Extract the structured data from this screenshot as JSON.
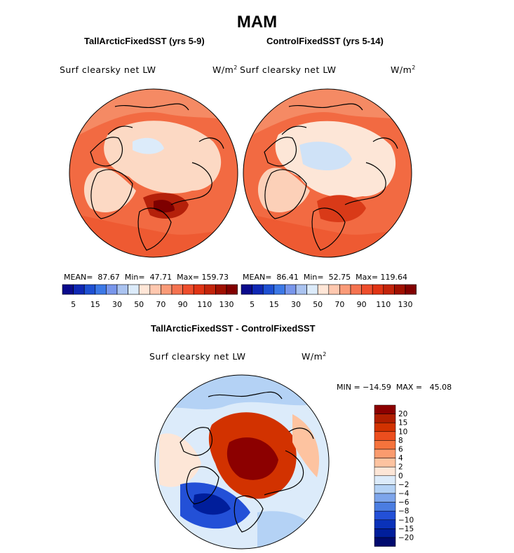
{
  "suptitle": "MAM",
  "panels": [
    {
      "title": "TallArcticFixedSST (yrs 5-9)",
      "variable": "Surf clearsky net LW",
      "units": "W/m",
      "units_exp": "2",
      "stats": "MEAN=  87.67  Min=  47.71  Max= 159.73"
    },
    {
      "title": "ControlFixedSST (yrs 5-14)",
      "variable": "Surf clearsky net LW",
      "units": "W/m",
      "units_exp": "2",
      "stats": "MEAN=  86.41  Min=  52.75  Max= 119.64"
    }
  ],
  "top_colorbar": {
    "tick_labels": [
      "5",
      "15",
      "30",
      "50",
      "70",
      "90",
      "110",
      "130"
    ],
    "colors": [
      "#0a0a8c",
      "#0f28b4",
      "#1e50d2",
      "#3c78e6",
      "#7896eb",
      "#aac3f0",
      "#dcebfa",
      "#ffe6d7",
      "#ffc8af",
      "#fa9b78",
      "#f57350",
      "#ee4e2c",
      "#e03414",
      "#c3240a",
      "#a01000",
      "#820000"
    ]
  },
  "diff_panel": {
    "title": "TallArcticFixedSST - ControlFixedSST",
    "variable": "Surf clearsky net LW",
    "units": "W/m",
    "units_exp": "2",
    "minmax": "MIN = −14.59  MAX =   45.08"
  },
  "diff_colorbar": {
    "levels": [
      "20",
      "15",
      "10",
      "8",
      "6",
      "4",
      "2",
      "0",
      "−2",
      "−4",
      "−6",
      "−8",
      "−10",
      "−15",
      "−20"
    ],
    "colors": [
      "#8c0000",
      "#b01e00",
      "#d23200",
      "#ec4e1e",
      "#f5733c",
      "#fa9b6e",
      "#fdc3a0",
      "#fde6d7",
      "#dcebfa",
      "#b4d2f5",
      "#7da5eb",
      "#4b7de1",
      "#2350d7",
      "#0a32b9",
      "#001e9b",
      "#000a6e"
    ]
  }
}
